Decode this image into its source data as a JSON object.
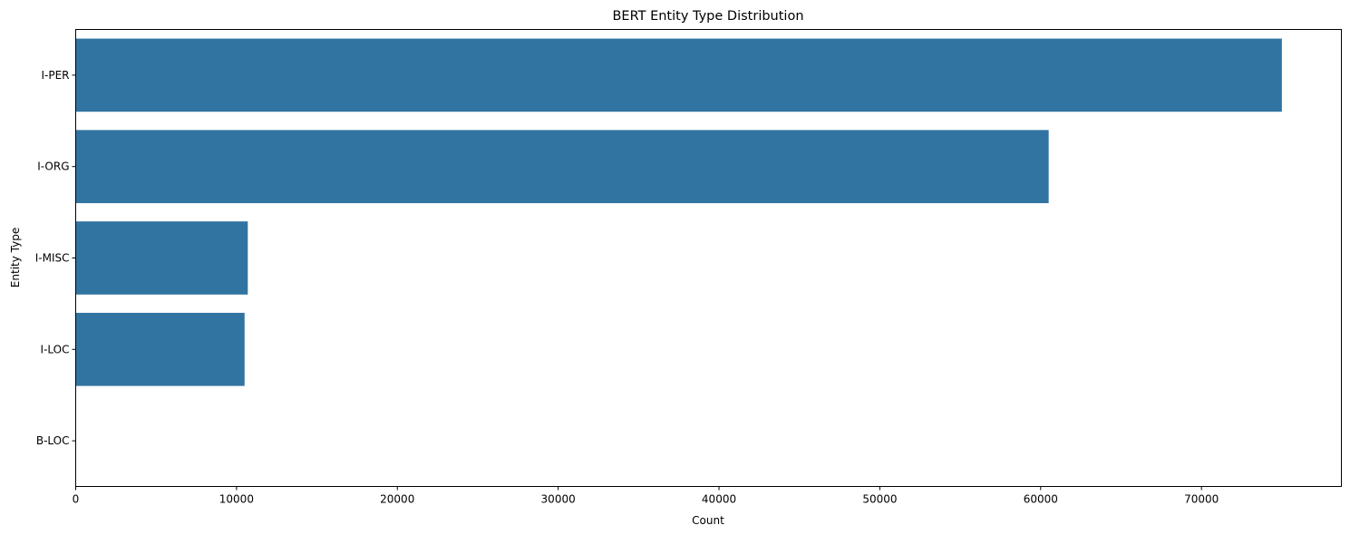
{
  "chart_data": {
    "type": "bar",
    "orientation": "horizontal",
    "title": "BERT Entity Type Distribution",
    "xlabel": "Count",
    "ylabel": "Entity Type",
    "categories": [
      "I-PER",
      "I-ORG",
      "I-MISC",
      "I-LOC",
      "B-LOC"
    ],
    "values": [
      75000,
      60500,
      10700,
      10500,
      3
    ],
    "xlim": [
      0,
      78700
    ],
    "xticks": [
      0,
      10000,
      20000,
      30000,
      40000,
      50000,
      60000,
      70000
    ],
    "grid": false,
    "bar_color": "#3274a1"
  }
}
